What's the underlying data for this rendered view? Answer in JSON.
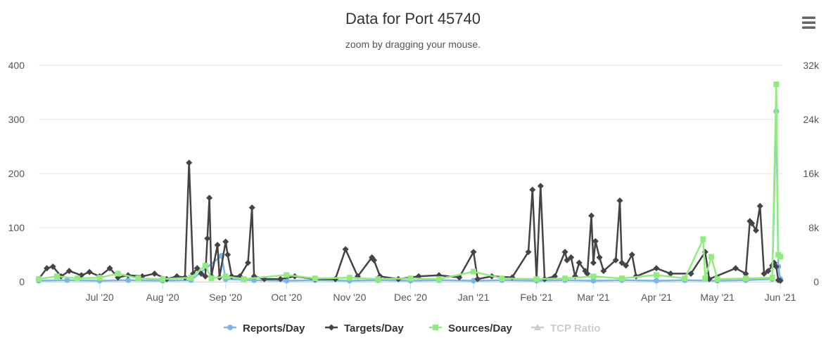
{
  "chart_data": {
    "type": "line",
    "title": "Data for Port 45740",
    "subtitle": "zoom by dragging your mouse.",
    "x_tick_labels": [
      "Jul '20",
      "Aug '20",
      "Sep '20",
      "Oct '20",
      "Nov '20",
      "Dec '20",
      "Jan '21",
      "Feb '21",
      "Mar '21",
      "Apr '21",
      "May '21",
      "Jun '21"
    ],
    "x_ticks": [
      "2020-07-01",
      "2020-08-01",
      "2020-09-01",
      "2020-10-01",
      "2020-11-01",
      "2020-12-01",
      "2021-01-01",
      "2021-02-01",
      "2021-03-01",
      "2021-04-01",
      "2021-05-01",
      "2021-06-01"
    ],
    "x_range": [
      "2020-06-01",
      "2021-06-02"
    ],
    "y_left": {
      "ticks": [
        "0",
        "100",
        "200",
        "300",
        "400"
      ],
      "min": 0,
      "max": 400
    },
    "y_right": {
      "ticks": [
        "0",
        "8k",
        "16k",
        "24k",
        "32k"
      ],
      "min": 0,
      "max": 32000
    },
    "grid": true,
    "legend_position": "bottom",
    "series": [
      {
        "name": "Reports/Day",
        "color": "#7cb5ec",
        "marker": "circle",
        "axis": "left",
        "points": [
          [
            "2020-06-01",
            2
          ],
          [
            "2020-06-15",
            3
          ],
          [
            "2020-07-01",
            2
          ],
          [
            "2020-07-15",
            3
          ],
          [
            "2020-08-01",
            2
          ],
          [
            "2020-08-15",
            3
          ],
          [
            "2020-08-30",
            48
          ],
          [
            "2020-09-01",
            5
          ],
          [
            "2020-09-15",
            3
          ],
          [
            "2020-10-01",
            2
          ],
          [
            "2020-10-15",
            3
          ],
          [
            "2020-11-01",
            2
          ],
          [
            "2020-11-15",
            3
          ],
          [
            "2020-12-01",
            2
          ],
          [
            "2020-12-15",
            3
          ],
          [
            "2021-01-01",
            2
          ],
          [
            "2021-01-15",
            3
          ],
          [
            "2021-02-01",
            2
          ],
          [
            "2021-02-15",
            3
          ],
          [
            "2021-03-01",
            2
          ],
          [
            "2021-03-15",
            3
          ],
          [
            "2021-04-01",
            2
          ],
          [
            "2021-04-15",
            3
          ],
          [
            "2021-05-01",
            2
          ],
          [
            "2021-05-15",
            3
          ],
          [
            "2021-05-28",
            5
          ],
          [
            "2021-05-30",
            315
          ],
          [
            "2021-05-31",
            28
          ],
          [
            "2021-06-01",
            5
          ]
        ]
      },
      {
        "name": "Targets/Day",
        "color": "#434348",
        "marker": "diamond",
        "axis": "left",
        "points": [
          [
            "2020-06-01",
            5
          ],
          [
            "2020-06-05",
            25
          ],
          [
            "2020-06-08",
            28
          ],
          [
            "2020-06-12",
            10
          ],
          [
            "2020-06-16",
            20
          ],
          [
            "2020-06-22",
            12
          ],
          [
            "2020-06-26",
            18
          ],
          [
            "2020-07-01",
            10
          ],
          [
            "2020-07-06",
            25
          ],
          [
            "2020-07-10",
            8
          ],
          [
            "2020-07-15",
            12
          ],
          [
            "2020-07-22",
            10
          ],
          [
            "2020-07-28",
            15
          ],
          [
            "2020-08-03",
            5
          ],
          [
            "2020-08-08",
            10
          ],
          [
            "2020-08-12",
            8
          ],
          [
            "2020-08-14",
            220
          ],
          [
            "2020-08-16",
            15
          ],
          [
            "2020-08-18",
            25
          ],
          [
            "2020-08-20",
            15
          ],
          [
            "2020-08-22",
            10
          ],
          [
            "2020-08-23",
            80
          ],
          [
            "2020-08-24",
            155
          ],
          [
            "2020-08-25",
            10
          ],
          [
            "2020-08-28",
            68
          ],
          [
            "2020-08-29",
            8
          ],
          [
            "2020-09-01",
            74
          ],
          [
            "2020-09-02",
            50
          ],
          [
            "2020-09-04",
            10
          ],
          [
            "2020-09-08",
            10
          ],
          [
            "2020-09-12",
            35
          ],
          [
            "2020-09-14",
            137
          ],
          [
            "2020-09-15",
            10
          ],
          [
            "2020-09-20",
            5
          ],
          [
            "2020-09-28",
            5
          ],
          [
            "2020-10-05",
            10
          ],
          [
            "2020-10-15",
            5
          ],
          [
            "2020-10-25",
            5
          ],
          [
            "2020-10-30",
            60
          ],
          [
            "2020-11-05",
            10
          ],
          [
            "2020-11-12",
            45
          ],
          [
            "2020-11-13",
            40
          ],
          [
            "2020-11-16",
            10
          ],
          [
            "2020-11-25",
            5
          ],
          [
            "2020-12-05",
            10
          ],
          [
            "2020-12-15",
            12
          ],
          [
            "2020-12-25",
            8
          ],
          [
            "2021-01-01",
            55
          ],
          [
            "2021-01-03",
            5
          ],
          [
            "2021-01-10",
            10
          ],
          [
            "2021-01-20",
            8
          ],
          [
            "2021-01-28",
            55
          ],
          [
            "2021-01-30",
            170
          ],
          [
            "2021-02-01",
            5
          ],
          [
            "2021-02-03",
            177
          ],
          [
            "2021-02-05",
            5
          ],
          [
            "2021-02-10",
            10
          ],
          [
            "2021-02-15",
            55
          ],
          [
            "2021-02-16",
            40
          ],
          [
            "2021-02-18",
            45
          ],
          [
            "2021-02-20",
            10
          ],
          [
            "2021-02-22",
            35
          ],
          [
            "2021-02-25",
            20
          ],
          [
            "2021-02-26",
            15
          ],
          [
            "2021-02-28",
            122
          ],
          [
            "2021-03-01",
            35
          ],
          [
            "2021-03-02",
            75
          ],
          [
            "2021-03-04",
            45
          ],
          [
            "2021-03-06",
            20
          ],
          [
            "2021-03-12",
            40
          ],
          [
            "2021-03-14",
            150
          ],
          [
            "2021-03-15",
            35
          ],
          [
            "2021-03-17",
            30
          ],
          [
            "2021-03-20",
            50
          ],
          [
            "2021-03-22",
            10
          ],
          [
            "2021-04-01",
            25
          ],
          [
            "2021-04-08",
            15
          ],
          [
            "2021-04-18",
            15
          ],
          [
            "2021-04-25",
            55
          ],
          [
            "2021-04-27",
            5
          ],
          [
            "2021-05-10",
            25
          ],
          [
            "2021-05-15",
            15
          ],
          [
            "2021-05-17",
            112
          ],
          [
            "2021-05-18",
            108
          ],
          [
            "2021-05-20",
            95
          ],
          [
            "2021-05-22",
            140
          ],
          [
            "2021-05-24",
            15
          ],
          [
            "2021-05-26",
            20
          ],
          [
            "2021-05-28",
            30
          ],
          [
            "2021-05-29",
            35
          ],
          [
            "2021-05-30",
            28
          ],
          [
            "2021-05-31",
            3
          ],
          [
            "2021-06-01",
            2
          ]
        ]
      },
      {
        "name": "Sources/Day",
        "color": "#90ed7d",
        "marker": "square",
        "axis": "right",
        "points": [
          [
            "2020-06-01",
            400
          ],
          [
            "2020-06-10",
            800
          ],
          [
            "2020-06-20",
            500
          ],
          [
            "2020-07-01",
            600
          ],
          [
            "2020-07-10",
            1200
          ],
          [
            "2020-07-20",
            500
          ],
          [
            "2020-08-01",
            400
          ],
          [
            "2020-08-15",
            600
          ],
          [
            "2020-08-22",
            2400
          ],
          [
            "2020-08-25",
            500
          ],
          [
            "2020-09-01",
            800
          ],
          [
            "2020-09-10",
            400
          ],
          [
            "2020-10-01",
            1000
          ],
          [
            "2020-10-15",
            500
          ],
          [
            "2020-11-01",
            600
          ],
          [
            "2020-11-15",
            400
          ],
          [
            "2020-12-01",
            500
          ],
          [
            "2020-12-15",
            400
          ],
          [
            "2021-01-01",
            1500
          ],
          [
            "2021-01-15",
            500
          ],
          [
            "2021-02-01",
            400
          ],
          [
            "2021-02-15",
            500
          ],
          [
            "2021-03-01",
            800
          ],
          [
            "2021-03-15",
            500
          ],
          [
            "2021-04-01",
            1000
          ],
          [
            "2021-04-15",
            500
          ],
          [
            "2021-04-24",
            6300
          ],
          [
            "2021-04-25",
            500
          ],
          [
            "2021-04-28",
            3700
          ],
          [
            "2021-05-01",
            400
          ],
          [
            "2021-05-15",
            500
          ],
          [
            "2021-05-28",
            600
          ],
          [
            "2021-05-30",
            29200
          ],
          [
            "2021-05-31",
            4000
          ],
          [
            "2021-06-01",
            3700
          ]
        ]
      },
      {
        "name": "TCP Ratio",
        "color": "#cccccc",
        "marker": "triangle",
        "axis": "left",
        "hidden": true,
        "points": []
      }
    ]
  },
  "menu": {
    "icon": "hamburger-menu-icon"
  }
}
